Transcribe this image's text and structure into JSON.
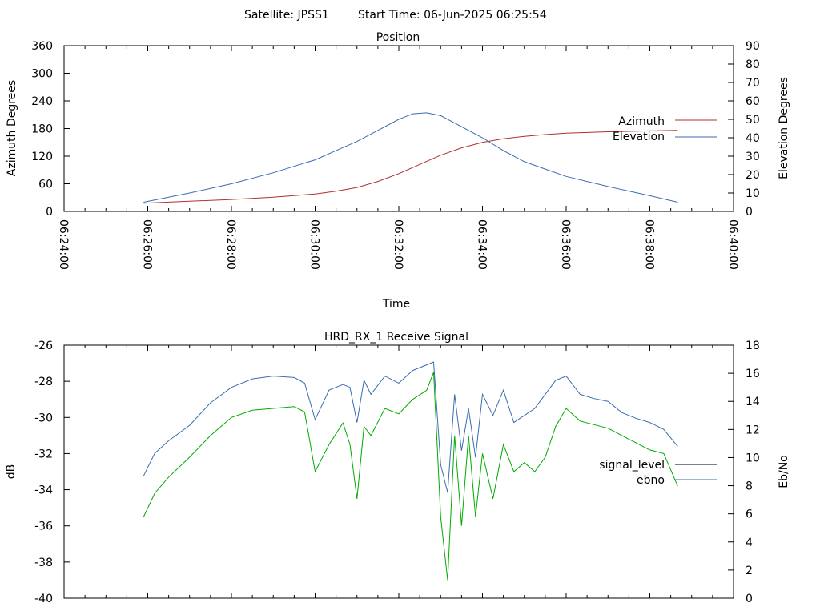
{
  "header": {
    "satellite": "Satellite: JPSS1",
    "start_time": "Start Time: 06-Jun-2025 06:25:54"
  },
  "colors": {
    "azimuth": "#b03030",
    "elevation": "#3b6db0",
    "signal_level": "#00aa00",
    "ebno": "#3b6db0",
    "legend_signal": "#000000"
  },
  "chart_data": [
    {
      "type": "line",
      "title": "Position",
      "xlabel": "Time",
      "ylabel": "Azimuth Degrees",
      "y2label": "Elevation Degrees",
      "xlim": [
        "06:24:00",
        "06:40:00"
      ],
      "ylim": [
        0,
        360
      ],
      "y2lim": [
        0,
        90
      ],
      "xticks": [
        "06:24:00",
        "06:26:00",
        "06:28:00",
        "06:30:00",
        "06:32:00",
        "06:34:00",
        "06:36:00",
        "06:38:00",
        "06:40:00"
      ],
      "yticks": [
        "0",
        "60",
        "120",
        "180",
        "240",
        "300",
        "360"
      ],
      "y2ticks": [
        "0",
        "10",
        "20",
        "30",
        "40",
        "50",
        "60",
        "70",
        "80",
        "90"
      ],
      "legend_position": "right",
      "series": [
        {
          "name": "Azimuth",
          "axis": "y1",
          "x": [
            "06:25:54",
            "06:27:00",
            "06:28:00",
            "06:29:00",
            "06:30:00",
            "06:30:30",
            "06:31:00",
            "06:31:30",
            "06:32:00",
            "06:32:30",
            "06:33:00",
            "06:33:30",
            "06:34:00",
            "06:34:30",
            "06:35:00",
            "06:35:30",
            "06:36:00",
            "06:37:00",
            "06:38:00",
            "06:38:40"
          ],
          "y": [
            18,
            22,
            26,
            31,
            38,
            44,
            52,
            65,
            82,
            102,
            122,
            138,
            150,
            158,
            163,
            167,
            170,
            173,
            175,
            176
          ]
        },
        {
          "name": "Elevation",
          "axis": "y2",
          "x": [
            "06:25:54",
            "06:27:00",
            "06:28:00",
            "06:29:00",
            "06:30:00",
            "06:30:30",
            "06:31:00",
            "06:31:30",
            "06:32:00",
            "06:32:20",
            "06:32:40",
            "06:33:00",
            "06:33:30",
            "06:34:00",
            "06:34:30",
            "06:35:00",
            "06:35:30",
            "06:36:00",
            "06:37:00",
            "06:38:00",
            "06:38:40"
          ],
          "y": [
            5,
            10,
            15,
            21,
            28,
            33,
            38,
            44,
            50,
            53,
            53.5,
            52,
            46,
            40,
            33,
            27,
            23,
            19,
            13.5,
            8.5,
            5
          ]
        }
      ]
    },
    {
      "type": "line",
      "title": "HRD_RX_1 Receive Signal",
      "ylabel": "dB",
      "y2label": "Eb/No",
      "xlim": [
        "06:24:00",
        "06:40:00"
      ],
      "ylim": [
        -40,
        -26
      ],
      "y2lim": [
        0,
        18
      ],
      "yticks": [
        "-40",
        "-38",
        "-36",
        "-34",
        "-32",
        "-30",
        "-28",
        "-26"
      ],
      "y2ticks": [
        "0",
        "2",
        "4",
        "6",
        "8",
        "10",
        "12",
        "14",
        "16",
        "18"
      ],
      "legend_position": "right",
      "series": [
        {
          "name": "signal_level",
          "axis": "y1",
          "x": [
            "06:25:54",
            "06:26:10",
            "06:26:30",
            "06:27:00",
            "06:27:30",
            "06:28:00",
            "06:28:30",
            "06:29:00",
            "06:29:30",
            "06:29:45",
            "06:30:00",
            "06:30:20",
            "06:30:40",
            "06:30:50",
            "06:31:00",
            "06:31:10",
            "06:31:20",
            "06:31:40",
            "06:32:00",
            "06:32:20",
            "06:32:40",
            "06:32:50",
            "06:33:00",
            "06:33:10",
            "06:33:20",
            "06:33:30",
            "06:33:40",
            "06:33:50",
            "06:34:00",
            "06:34:15",
            "06:34:30",
            "06:34:45",
            "06:35:00",
            "06:35:15",
            "06:35:30",
            "06:35:45",
            "06:36:00",
            "06:36:20",
            "06:36:40",
            "06:37:00",
            "06:37:20",
            "06:37:40",
            "06:38:00",
            "06:38:20",
            "06:38:40"
          ],
          "y": [
            -35.5,
            -34.2,
            -33.3,
            -32.2,
            -31.0,
            -30.0,
            -29.6,
            -29.5,
            -29.4,
            -29.7,
            -33.0,
            -31.5,
            -30.3,
            -31.5,
            -34.5,
            -30.5,
            -31.0,
            -29.5,
            -29.8,
            -29.0,
            -28.5,
            -27.5,
            -35.5,
            -39.0,
            -31.0,
            -36.0,
            -31.0,
            -35.5,
            -32.0,
            -34.5,
            -31.5,
            -33.0,
            -32.5,
            -33.0,
            -32.2,
            -30.5,
            -29.5,
            -30.2,
            -30.4,
            -30.6,
            -31.0,
            -31.4,
            -31.8,
            -32.0,
            -33.8
          ]
        },
        {
          "name": "ebno",
          "axis": "y2",
          "x": [
            "06:25:54",
            "06:26:10",
            "06:26:30",
            "06:27:00",
            "06:27:30",
            "06:28:00",
            "06:28:30",
            "06:29:00",
            "06:29:30",
            "06:29:45",
            "06:30:00",
            "06:30:20",
            "06:30:40",
            "06:30:50",
            "06:31:00",
            "06:31:10",
            "06:31:20",
            "06:31:40",
            "06:32:00",
            "06:32:20",
            "06:32:40",
            "06:32:50",
            "06:33:00",
            "06:33:10",
            "06:33:20",
            "06:33:30",
            "06:33:40",
            "06:33:50",
            "06:34:00",
            "06:34:15",
            "06:34:30",
            "06:34:45",
            "06:35:00",
            "06:35:15",
            "06:35:30",
            "06:35:45",
            "06:36:00",
            "06:36:20",
            "06:36:40",
            "06:37:00",
            "06:37:20",
            "06:37:40",
            "06:38:00",
            "06:38:20",
            "06:38:40"
          ],
          "y": [
            8.7,
            10.3,
            11.2,
            12.3,
            13.9,
            15.0,
            15.6,
            15.8,
            15.7,
            15.3,
            12.7,
            14.8,
            15.2,
            15.0,
            12.5,
            15.5,
            14.5,
            15.8,
            15.3,
            16.2,
            16.6,
            16.8,
            9.5,
            7.5,
            14.5,
            10.5,
            13.5,
            10.0,
            14.5,
            13.0,
            14.8,
            12.5,
            13.0,
            13.5,
            14.5,
            15.5,
            15.8,
            14.5,
            14.2,
            14.0,
            13.2,
            12.8,
            12.5,
            12.0,
            10.8
          ]
        }
      ]
    }
  ]
}
